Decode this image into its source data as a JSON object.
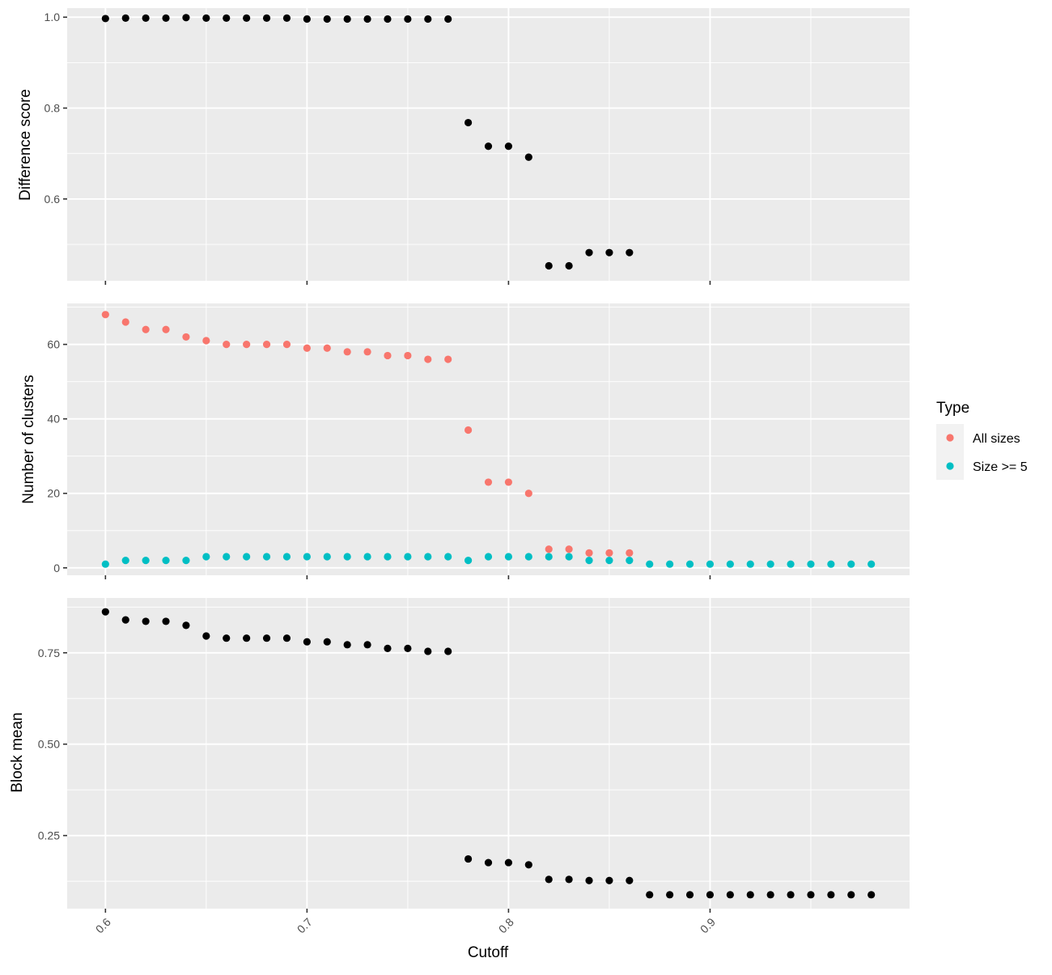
{
  "chart_data": [
    {
      "type": "scatter",
      "panel": "top",
      "ylabel": "Difference score",
      "xlim": [
        0.581,
        0.999
      ],
      "ylim": [
        0.42,
        1.02
      ],
      "x_ticks": [
        0.6,
        0.7,
        0.8,
        0.9
      ],
      "y_ticks": [
        0.6,
        0.8,
        1.0
      ],
      "y_tick_labels": [
        "0.6",
        "0.8",
        "1.0"
      ],
      "grid": true,
      "point_color": "#000000",
      "series": [
        {
          "x": [
            0.6,
            0.61,
            0.62,
            0.63,
            0.64,
            0.65,
            0.66,
            0.67,
            0.68,
            0.69,
            0.7,
            0.71,
            0.72,
            0.73,
            0.74,
            0.75,
            0.76,
            0.77,
            0.78,
            0.79,
            0.8,
            0.81,
            0.82,
            0.83,
            0.84,
            0.85,
            0.86
          ],
          "y": [
            0.997,
            0.998,
            0.998,
            0.998,
            0.999,
            0.998,
            0.998,
            0.998,
            0.998,
            0.998,
            0.996,
            0.996,
            0.996,
            0.996,
            0.996,
            0.996,
            0.996,
            0.996,
            0.768,
            0.716,
            0.716,
            0.692,
            0.453,
            0.453,
            0.482,
            0.482,
            0.482
          ]
        }
      ]
    },
    {
      "type": "scatter",
      "panel": "middle",
      "ylabel": "Number of clusters",
      "xlim": [
        0.581,
        0.999
      ],
      "ylim": [
        -2,
        71
      ],
      "x_ticks": [
        0.6,
        0.7,
        0.8,
        0.9
      ],
      "y_ticks": [
        0,
        20,
        40,
        60
      ],
      "y_tick_labels": [
        "0",
        "20",
        "40",
        "60"
      ],
      "grid": true,
      "legend": {
        "title": "Type",
        "position": "right"
      },
      "series": [
        {
          "name": "All sizes",
          "color": "#F8766D",
          "x": [
            0.6,
            0.61,
            0.62,
            0.63,
            0.64,
            0.65,
            0.66,
            0.67,
            0.68,
            0.69,
            0.7,
            0.71,
            0.72,
            0.73,
            0.74,
            0.75,
            0.76,
            0.77,
            0.78,
            0.79,
            0.8,
            0.81,
            0.82,
            0.83,
            0.84,
            0.85,
            0.86
          ],
          "y": [
            68,
            66,
            64,
            64,
            62,
            61,
            60,
            60,
            60,
            60,
            59,
            59,
            58,
            58,
            57,
            57,
            56,
            56,
            37,
            23,
            23,
            20,
            5,
            5,
            4,
            4,
            4
          ]
        },
        {
          "name": "Size >= 5",
          "color": "#00BFC4",
          "x": [
            0.6,
            0.61,
            0.62,
            0.63,
            0.64,
            0.65,
            0.66,
            0.67,
            0.68,
            0.69,
            0.7,
            0.71,
            0.72,
            0.73,
            0.74,
            0.75,
            0.76,
            0.77,
            0.78,
            0.79,
            0.8,
            0.81,
            0.82,
            0.83,
            0.84,
            0.85,
            0.86,
            0.87,
            0.88,
            0.89,
            0.9,
            0.91,
            0.92,
            0.93,
            0.94,
            0.95,
            0.96,
            0.97,
            0.98
          ],
          "y": [
            1,
            2,
            2,
            2,
            2,
            3,
            3,
            3,
            3,
            3,
            3,
            3,
            3,
            3,
            3,
            3,
            3,
            3,
            2,
            3,
            3,
            3,
            3,
            3,
            2,
            2,
            2,
            1,
            1,
            1,
            1,
            1,
            1,
            1,
            1,
            1,
            1,
            1,
            1
          ]
        }
      ]
    },
    {
      "type": "scatter",
      "panel": "bottom",
      "ylabel": "Block mean",
      "xlabel": "Cutoff",
      "xlim": [
        0.581,
        0.999
      ],
      "ylim": [
        0.05,
        0.9
      ],
      "x_ticks": [
        0.6,
        0.7,
        0.8,
        0.9
      ],
      "x_tick_labels": [
        "0.6",
        "0.7",
        "0.8",
        "0.9"
      ],
      "y_ticks": [
        0.25,
        0.5,
        0.75
      ],
      "y_tick_labels": [
        "0.25",
        "0.50",
        "0.75"
      ],
      "grid": true,
      "point_color": "#000000",
      "series": [
        {
          "x": [
            0.6,
            0.61,
            0.62,
            0.63,
            0.64,
            0.65,
            0.66,
            0.67,
            0.68,
            0.69,
            0.7,
            0.71,
            0.72,
            0.73,
            0.74,
            0.75,
            0.76,
            0.77,
            0.78,
            0.79,
            0.8,
            0.81,
            0.82,
            0.83,
            0.84,
            0.85,
            0.86,
            0.87,
            0.88,
            0.89,
            0.9,
            0.91,
            0.92,
            0.93,
            0.94,
            0.95,
            0.96,
            0.97,
            0.98
          ],
          "y": [
            0.862,
            0.84,
            0.836,
            0.836,
            0.825,
            0.796,
            0.79,
            0.79,
            0.79,
            0.79,
            0.78,
            0.78,
            0.772,
            0.772,
            0.762,
            0.762,
            0.754,
            0.754,
            0.186,
            0.176,
            0.176,
            0.17,
            0.13,
            0.13,
            0.127,
            0.127,
            0.127,
            0.088,
            0.088,
            0.088,
            0.088,
            0.088,
            0.088,
            0.088,
            0.088,
            0.088,
            0.088,
            0.088,
            0.088
          ]
        }
      ]
    }
  ],
  "legend": {
    "title": "Type",
    "items": [
      {
        "label": "All sizes",
        "color": "#F8766D"
      },
      {
        "label": "Size >= 5",
        "color": "#00BFC4"
      }
    ]
  },
  "colors": {
    "panel_background": "#EBEBEB",
    "grid": "#FFFFFF",
    "tick": "#333333"
  }
}
